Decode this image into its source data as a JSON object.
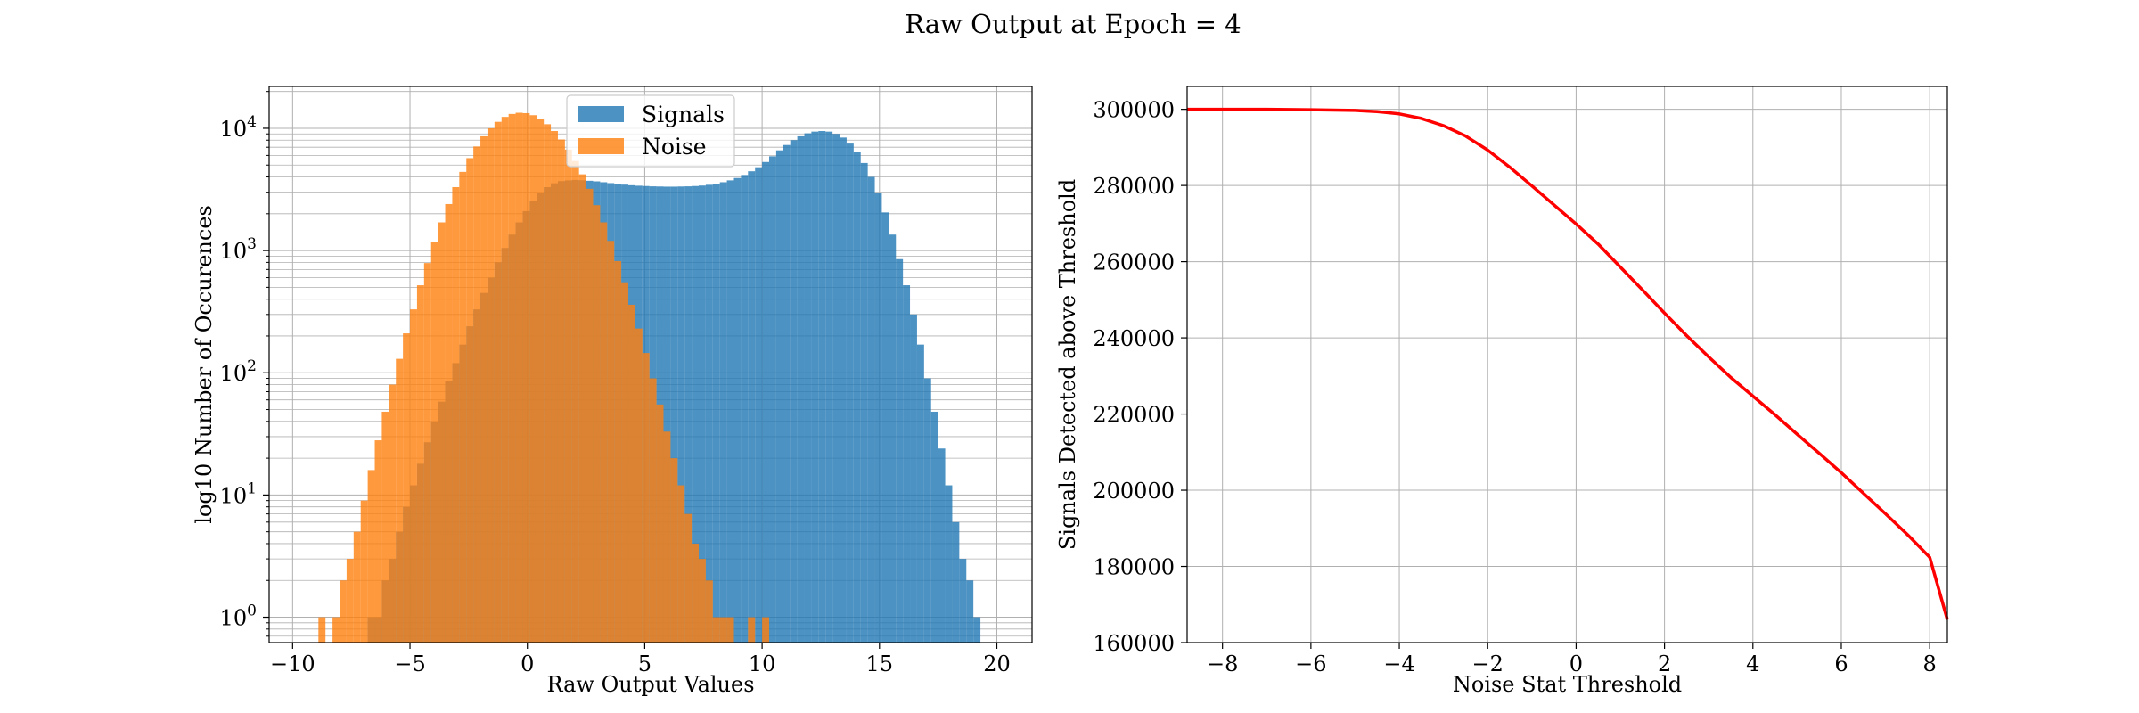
{
  "figure": {
    "suptitle": "Raw Output at Epoch = 4"
  },
  "chart_data": [
    {
      "type": "bar",
      "subtype": "histogram",
      "xlabel": "Raw Output Values",
      "ylabel": "log10 Number of Occurences",
      "xlim": [
        -11,
        21.5
      ],
      "ylim": [
        0.62,
        22000
      ],
      "yscale": "log",
      "x_ticks": [
        -10,
        -5,
        0,
        5,
        10,
        15,
        20
      ],
      "x_tick_labels": [
        "−10",
        "−5",
        "0",
        "5",
        "10",
        "15",
        "20"
      ],
      "y_ticks": [
        1,
        10,
        100,
        1000,
        10000
      ],
      "y_tick_labels": [
        {
          "base": "10",
          "exp": "0"
        },
        {
          "base": "10",
          "exp": "1"
        },
        {
          "base": "10",
          "exp": "2"
        },
        {
          "base": "10",
          "exp": "3"
        },
        {
          "base": "10",
          "exp": "4"
        }
      ],
      "grid": true,
      "legend": "top-center",
      "bin_width": 0.3,
      "series": [
        {
          "name": "Signals",
          "color": "#1f77b4",
          "alpha": 0.8,
          "bin_start": -6.8,
          "values": [
            1,
            1,
            2,
            3,
            5,
            8,
            12,
            18,
            27,
            40,
            58,
            85,
            120,
            170,
            240,
            330,
            450,
            600,
            800,
            1050,
            1350,
            1700,
            2100,
            2550,
            2950,
            3300,
            3550,
            3700,
            3750,
            3780,
            3760,
            3720,
            3680,
            3620,
            3560,
            3500,
            3460,
            3420,
            3390,
            3370,
            3350,
            3340,
            3330,
            3330,
            3340,
            3350,
            3370,
            3400,
            3450,
            3520,
            3620,
            3750,
            3920,
            4150,
            4450,
            4800,
            5300,
            5900,
            6600,
            7300,
            8000,
            8600,
            9100,
            9400,
            9500,
            9400,
            9000,
            8400,
            7500,
            6400,
            5200,
            4000,
            2950,
            2050,
            1350,
            850,
            520,
            300,
            170,
            90,
            48,
            24,
            12,
            6,
            3,
            2,
            1
          ]
        },
        {
          "name": "Noise",
          "color": "#ff7f0e",
          "alpha": 0.8,
          "bin_start": -8.9,
          "values": [
            1,
            0,
            1,
            2,
            3,
            5,
            9,
            16,
            28,
            48,
            80,
            130,
            210,
            330,
            520,
            790,
            1180,
            1700,
            2400,
            3300,
            4400,
            5700,
            7100,
            8600,
            10000,
            11300,
            12400,
            13100,
            13400,
            13300,
            12800,
            11900,
            10800,
            9500,
            8100,
            6700,
            5400,
            4200,
            3200,
            2350,
            1700,
            1200,
            820,
            550,
            360,
            230,
            145,
            90,
            55,
            33,
            20,
            12,
            7,
            4,
            3,
            2,
            1,
            1,
            1,
            0,
            0,
            1,
            0,
            1
          ]
        }
      ]
    },
    {
      "type": "line",
      "xlabel": "Noise Stat Threshold",
      "ylabel": "Signals Detected above Threshold",
      "xlim": [
        -8.8,
        8.4
      ],
      "ylim": [
        160000,
        306000
      ],
      "x_ticks": [
        -8,
        -6,
        -4,
        -2,
        0,
        2,
        4,
        6,
        8
      ],
      "x_tick_labels": [
        "−8",
        "−6",
        "−4",
        "−2",
        "0",
        "2",
        "4",
        "6",
        "8"
      ],
      "y_ticks": [
        160000,
        180000,
        200000,
        220000,
        240000,
        260000,
        280000,
        300000
      ],
      "y_tick_labels": [
        "160000",
        "180000",
        "200000",
        "220000",
        "240000",
        "260000",
        "280000",
        "300000"
      ],
      "grid": true,
      "series": [
        {
          "color": "#ff0000",
          "x": [
            -8.8,
            -7,
            -6,
            -5,
            -4.5,
            -4,
            -3.5,
            -3,
            -2.5,
            -2,
            -1.5,
            -1,
            -0.5,
            0,
            0.5,
            1,
            1.5,
            2,
            2.5,
            3,
            3.5,
            4,
            4.5,
            5,
            5.5,
            6,
            6.5,
            7,
            7.5,
            8,
            8.4
          ],
          "y": [
            300000,
            300000,
            299900,
            299700,
            299400,
            298800,
            297600,
            295700,
            293000,
            289300,
            284800,
            279900,
            274900,
            269900,
            264600,
            258600,
            252600,
            246500,
            240600,
            235000,
            229600,
            224700,
            219800,
            214700,
            209700,
            204600,
            199200,
            193800,
            188300,
            182400,
            166000
          ]
        }
      ]
    }
  ]
}
